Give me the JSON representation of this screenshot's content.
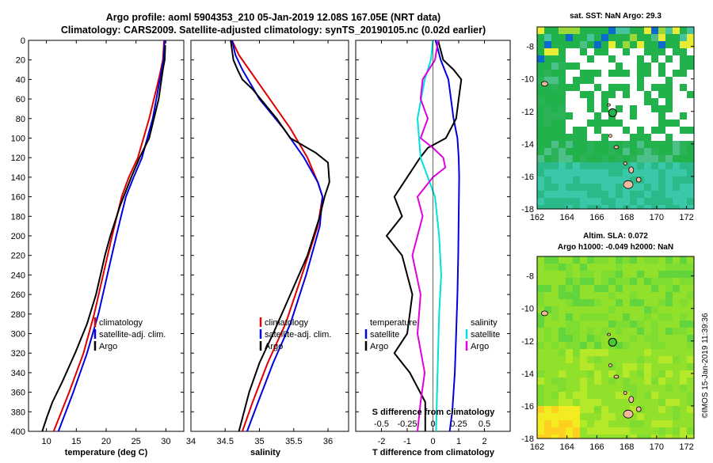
{
  "header": {
    "title_line1": "Argo profile: aoml 5904353_210 05-Jan-2019 12.08S 167.05E (NRT data)",
    "title_line2": "Climatology: CARS2009. Satellite-adjusted climatology: synTS_20190105.nc (0.02d earlier)"
  },
  "colors": {
    "climatology": "#e00000",
    "satellite": "#0000e0",
    "argo": "#000000",
    "salinity_satellite": "#00e0e0",
    "salinity_argo": "#e000e0"
  },
  "depth_ticks": [
    "0",
    "20",
    "40",
    "60",
    "80",
    "100",
    "120",
    "140",
    "160",
    "180",
    "200",
    "220",
    "240",
    "260",
    "280",
    "300",
    "320",
    "340",
    "360",
    "380",
    "400"
  ],
  "chart_data": [
    {
      "type": "line",
      "name": "temperature",
      "xlabel": "temperature (deg C)",
      "ylabel": "depth",
      "xlim": [
        7,
        33
      ],
      "ylim": [
        400,
        0
      ],
      "x_ticks": [
        "10",
        "15",
        "20",
        "25",
        "30"
      ],
      "series": [
        {
          "name": "climatology",
          "color": "#e00000",
          "x": [
            29.7,
            29.5,
            28.8,
            27.2,
            25.3,
            23.8,
            22.6,
            21.0,
            19.5,
            18.0,
            16.2,
            13.8,
            11.2
          ],
          "y": [
            0,
            20,
            40,
            80,
            120,
            140,
            160,
            200,
            240,
            280,
            320,
            360,
            400
          ]
        },
        {
          "name": "satellite-adj. clim.",
          "color": "#0000e0",
          "x": [
            29.8,
            29.6,
            29.0,
            27.8,
            26.0,
            24.6,
            23.3,
            21.7,
            20.2,
            18.7,
            16.8,
            14.5,
            12.0
          ],
          "y": [
            0,
            20,
            40,
            80,
            120,
            140,
            160,
            200,
            240,
            280,
            320,
            360,
            400
          ]
        },
        {
          "name": "Argo",
          "color": "#000000",
          "x": [
            29.9,
            29.8,
            29.5,
            28.8,
            27.2,
            25.6,
            24.2,
            22.3,
            20.7,
            19.8,
            18.3,
            16.8,
            14.8,
            12.6,
            11.0,
            10.1,
            9.3
          ],
          "y": [
            5,
            20,
            30,
            60,
            100,
            120,
            140,
            170,
            200,
            220,
            260,
            290,
            320,
            350,
            370,
            385,
            400
          ]
        }
      ],
      "legend": [
        "climatology",
        "satellite-adj. clim.",
        "Argo"
      ]
    },
    {
      "type": "line",
      "name": "salinity",
      "xlabel": "salinity",
      "ylabel": "depth",
      "xlim": [
        34.0,
        36.3
      ],
      "ylim": [
        400,
        0
      ],
      "x_ticks": [
        "34",
        "34.5",
        "35",
        "35.5",
        "36"
      ],
      "series": [
        {
          "name": "climatology",
          "color": "#e00000",
          "x": [
            34.6,
            34.7,
            34.85,
            35.15,
            35.45,
            35.7,
            35.85,
            35.92,
            35.85,
            35.62,
            35.38,
            35.12,
            34.9,
            34.75
          ],
          "y": [
            0,
            15,
            30,
            60,
            90,
            120,
            145,
            160,
            190,
            240,
            290,
            330,
            370,
            400
          ]
        },
        {
          "name": "satellite-adj. clim.",
          "color": "#0000e0",
          "x": [
            34.6,
            34.65,
            34.75,
            35.0,
            35.35,
            35.65,
            35.85,
            35.92,
            35.88,
            35.68,
            35.45,
            35.2,
            34.98,
            34.82
          ],
          "y": [
            0,
            15,
            30,
            60,
            90,
            120,
            145,
            160,
            190,
            240,
            290,
            330,
            370,
            400
          ]
        },
        {
          "name": "Argo",
          "color": "#000000",
          "x": [
            34.58,
            34.62,
            34.68,
            34.75,
            34.9,
            35.25,
            35.45,
            35.82,
            36.0,
            36.02,
            35.95,
            35.88,
            35.7,
            35.45,
            35.2,
            35.0,
            34.85,
            34.7
          ],
          "y": [
            0,
            20,
            30,
            40,
            50,
            80,
            100,
            115,
            125,
            145,
            160,
            180,
            220,
            260,
            300,
            330,
            360,
            400
          ]
        }
      ],
      "legend": [
        "climatology",
        "satellite-adj. clim.",
        "Argo"
      ]
    },
    {
      "type": "line",
      "name": "differences",
      "xlabel": "T difference from climatology",
      "x2label": "S difference from climatology",
      "ylabel": "depth",
      "xlim": [
        -3,
        3
      ],
      "x2lim": [
        -0.75,
        0.75
      ],
      "ylim": [
        400,
        0
      ],
      "x_ticks": [
        "-2",
        "-1",
        "0",
        "1",
        "2"
      ],
      "x2_ticks": [
        "-0.5",
        "-0.25",
        "0",
        "0.25",
        "0.5"
      ],
      "series": [
        {
          "name": "temperature satellite",
          "color": "#0000e0",
          "x": [
            0.1,
            0.3,
            0.6,
            0.8,
            0.95,
            1.0,
            1.02,
            1.0,
            0.98,
            0.95,
            0.9,
            0.85,
            0.75,
            0.65
          ],
          "y": [
            0,
            20,
            40,
            80,
            100,
            120,
            140,
            180,
            220,
            260,
            300,
            340,
            380,
            400
          ]
        },
        {
          "name": "temperature Argo",
          "color": "#000000",
          "x": [
            0.2,
            0.4,
            0.8,
            1.1,
            1.0,
            0.9,
            0.5,
            -0.2,
            -0.5,
            -1.0,
            -1.5,
            -1.2,
            -1.8,
            -1.2,
            -0.8,
            -1.0,
            -1.5,
            -0.9,
            -0.3,
            -0.3
          ],
          "y": [
            0,
            20,
            30,
            40,
            60,
            80,
            100,
            110,
            120,
            140,
            160,
            180,
            200,
            220,
            260,
            300,
            320,
            340,
            370,
            400
          ]
        },
        {
          "name": "salinity satellite",
          "color": "#00e0e0",
          "x": [
            0.0,
            -0.02,
            -0.08,
            -0.15,
            -0.12,
            -0.05,
            0.02,
            0.06,
            0.08,
            0.06,
            0.05,
            0.04,
            0.03
          ],
          "y": [
            0,
            20,
            40,
            80,
            120,
            140,
            160,
            200,
            240,
            280,
            320,
            360,
            400
          ]
        },
        {
          "name": "salinity Argo",
          "color": "#e000e0",
          "x": [
            0.05,
            0.02,
            -0.1,
            -0.12,
            -0.05,
            -0.12,
            0.0,
            0.1,
            0.12,
            0.0,
            -0.15,
            -0.1,
            -0.2,
            -0.12,
            -0.15,
            -0.08,
            -0.12,
            -0.15
          ],
          "y": [
            0,
            20,
            40,
            60,
            80,
            100,
            110,
            120,
            130,
            140,
            160,
            180,
            220,
            260,
            300,
            340,
            370,
            400
          ]
        }
      ],
      "legend_temperature": {
        "title": "temperature",
        "items": [
          "satellite",
          "Argo"
        ]
      },
      "legend_salinity": {
        "title": "salinity",
        "items": [
          "satellite",
          "Argo"
        ]
      }
    },
    {
      "type": "heatmap",
      "name": "sst-map",
      "title": "sat. SST: NaN Argo: 29.3",
      "x_ticks": [
        "162",
        "164",
        "166",
        "168",
        "170",
        "172"
      ],
      "y_ticks": [
        "-8",
        "-10",
        "-12",
        "-14",
        "-16",
        "-18"
      ],
      "xlim": [
        162,
        172.5
      ],
      "ylim": [
        -18,
        -6.8
      ],
      "marker": {
        "lon": 167.05,
        "lat": -12.08
      }
    },
    {
      "type": "heatmap",
      "name": "sla-map",
      "title_line1": "Altim. SLA: 0.072",
      "title_line2": "Argo h1000: -0.049 h2000: NaN",
      "x_ticks": [
        "162",
        "164",
        "166",
        "168",
        "170",
        "172"
      ],
      "y_ticks": [
        "-8",
        "-10",
        "-12",
        "-14",
        "-16",
        "-18"
      ],
      "xlim": [
        162,
        172.5
      ],
      "ylim": [
        -18,
        -6.8
      ],
      "marker": {
        "lon": 167.05,
        "lat": -12.08
      }
    }
  ],
  "footer": {
    "stamp": "©IMOS 15-Jan-2019 11:39:36"
  }
}
